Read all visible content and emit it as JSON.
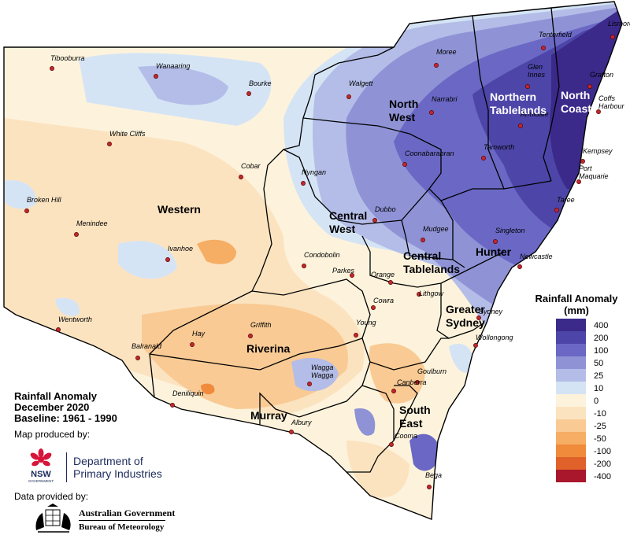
{
  "map": {
    "title_line1": "Rainfall Anomaly",
    "title_line2": "December 2020",
    "title_line3": "Baseline: 1961 - 1990",
    "produced_by": "Map produced by:",
    "data_by": "Data provided by:",
    "nsw_logo_text": "NSW",
    "nsw_gov_text": "GOVERNMENT",
    "dpi_line1": "Department of",
    "dpi_line2": "Primary Industries",
    "bom_line1": "Australian Government",
    "bom_line2": "Bureau of Meteorology"
  },
  "legend": {
    "title_line1": "Rainfall Anomaly",
    "title_line2": "(mm)",
    "classes": [
      {
        "label": "400",
        "color": "#3b2a8a"
      },
      {
        "label": "200",
        "color": "#4d45a8"
      },
      {
        "label": "100",
        "color": "#6a68c4"
      },
      {
        "label": "50",
        "color": "#8f93d6"
      },
      {
        "label": "25",
        "color": "#b4bde7"
      },
      {
        "label": "10",
        "color": "#d5e4f5"
      },
      {
        "label": "0",
        "color": "#fdf3dc"
      },
      {
        "label": "-10",
        "color": "#fce3c0"
      },
      {
        "label": "-25",
        "color": "#f9ca94"
      },
      {
        "label": "-50",
        "color": "#f6ad64"
      },
      {
        "label": "-100",
        "color": "#f08b3c"
      },
      {
        "label": "-200",
        "color": "#e0612a"
      },
      {
        "label": "-400",
        "color": "#a8172b"
      }
    ]
  },
  "regions": [
    {
      "name_line1": "Western",
      "name_line2": ""
    },
    {
      "name_line1": "North",
      "name_line2": "West"
    },
    {
      "name_line1": "Northern",
      "name_line2": "Tablelands"
    },
    {
      "name_line1": "North",
      "name_line2": "Coast"
    },
    {
      "name_line1": "Central",
      "name_line2": "West"
    },
    {
      "name_line1": "Central",
      "name_line2": "Tablelands"
    },
    {
      "name_line1": "Hunter",
      "name_line2": ""
    },
    {
      "name_line1": "Greater",
      "name_line2": "Sydney"
    },
    {
      "name_line1": "Riverina",
      "name_line2": ""
    },
    {
      "name_line1": "Murray",
      "name_line2": ""
    },
    {
      "name_line1": "South",
      "name_line2": "East"
    }
  ],
  "towns": [
    "Tibooburra",
    "Wanaaring",
    "Bourke",
    "Walgett",
    "Moree",
    "Tenterfield",
    "Lismore",
    "Glen Innes",
    "Grafton",
    "Narrabri",
    "Armidale",
    "Coffs Harbour",
    "White Cliffs",
    "Cobar",
    "Nyngan",
    "Coonabarabran",
    "Tamworth",
    "Kempsey",
    "Port Maquarie",
    "Taree",
    "Broken Hill",
    "Menindee",
    "Dubbo",
    "Mudgee",
    "Singleton",
    "Ivanhoe",
    "Condobolin",
    "Parkes",
    "Orange",
    "Newcastle",
    "Lithgow",
    "Cowra",
    "Sydney",
    "Wentworth",
    "Griffith",
    "Young",
    "Wollongong",
    "Hay",
    "Balranald",
    "Wagga Wagga",
    "Goulburn",
    "Canberra",
    "Deniliquin",
    "Albury",
    "Cooma",
    "Bega"
  ]
}
